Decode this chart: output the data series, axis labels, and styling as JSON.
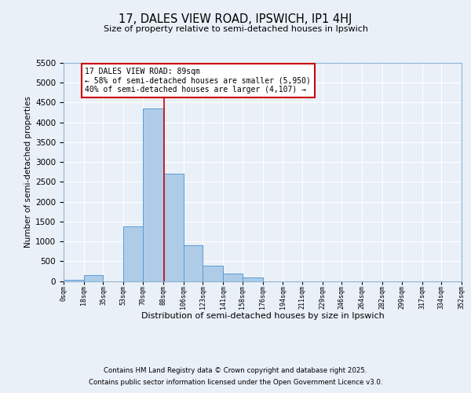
{
  "title": "17, DALES VIEW ROAD, IPSWICH, IP1 4HJ",
  "subtitle": "Size of property relative to semi-detached houses in Ipswich",
  "xlabel": "Distribution of semi-detached houses by size in Ipswich",
  "ylabel": "Number of semi-detached properties",
  "bin_edges": [
    0,
    18,
    35,
    53,
    70,
    88,
    106,
    123,
    141,
    158,
    176,
    194,
    211,
    229,
    246,
    264,
    282,
    299,
    317,
    334,
    352
  ],
  "bin_labels": [
    "0sqm",
    "18sqm",
    "35sqm",
    "53sqm",
    "70sqm",
    "88sqm",
    "106sqm",
    "123sqm",
    "141sqm",
    "158sqm",
    "176sqm",
    "194sqm",
    "211sqm",
    "229sqm",
    "246sqm",
    "264sqm",
    "282sqm",
    "299sqm",
    "317sqm",
    "334sqm",
    "352sqm"
  ],
  "counts": [
    20,
    150,
    0,
    1380,
    4350,
    2710,
    900,
    390,
    180,
    90,
    0,
    0,
    0,
    0,
    0,
    0,
    0,
    0,
    0,
    0
  ],
  "bar_color": "#aecce8",
  "bar_edge_color": "#5b9bd5",
  "background_color": "#eaf0f8",
  "grid_color": "#ffffff",
  "property_value": 89,
  "vline_color": "#cc0000",
  "annotation_title": "17 DALES VIEW ROAD: 89sqm",
  "annotation_line1": "← 58% of semi-detached houses are smaller (5,950)",
  "annotation_line2": "40% of semi-detached houses are larger (4,107) →",
  "annotation_box_color": "#cc0000",
  "ylim": [
    0,
    5500
  ],
  "yticks": [
    0,
    500,
    1000,
    1500,
    2000,
    2500,
    3000,
    3500,
    4000,
    4500,
    5000,
    5500
  ],
  "footer1": "Contains HM Land Registry data © Crown copyright and database right 2025.",
  "footer2": "Contains public sector information licensed under the Open Government Licence v3.0."
}
